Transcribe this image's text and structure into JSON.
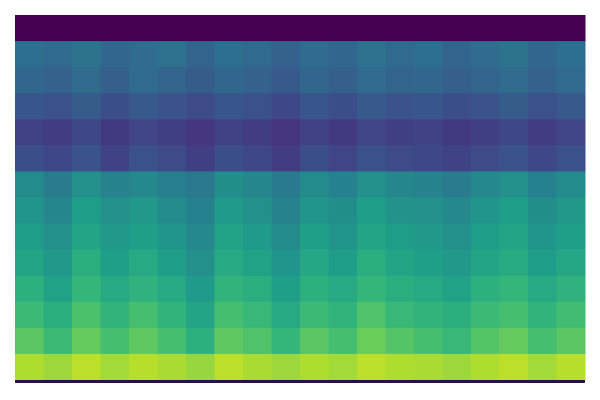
{
  "chart_data": {
    "type": "heatmap",
    "colormap": [
      "#440154",
      "#482878",
      "#3e4989",
      "#31688e",
      "#26828e",
      "#1f9e89",
      "#35b779",
      "#6ece58",
      "#b5de2b",
      "#fde725"
    ],
    "values": [
      [
        0,
        0,
        0,
        0,
        0,
        0,
        0,
        0,
        0,
        0,
        0,
        0,
        0,
        0,
        0,
        0,
        0,
        0,
        0,
        0
      ],
      [
        0.36,
        0.34,
        0.38,
        0.33,
        0.35,
        0.37,
        0.32,
        0.36,
        0.34,
        0.31,
        0.35,
        0.33,
        0.37,
        0.34,
        0.36,
        0.32,
        0.35,
        0.38,
        0.33,
        0.36
      ],
      [
        0.33,
        0.31,
        0.35,
        0.3,
        0.34,
        0.32,
        0.29,
        0.33,
        0.31,
        0.28,
        0.33,
        0.3,
        0.34,
        0.32,
        0.33,
        0.3,
        0.32,
        0.35,
        0.31,
        0.34
      ],
      [
        0.27,
        0.25,
        0.29,
        0.24,
        0.28,
        0.26,
        0.23,
        0.27,
        0.25,
        0.22,
        0.27,
        0.24,
        0.28,
        0.26,
        0.27,
        0.24,
        0.26,
        0.29,
        0.25,
        0.28
      ],
      [
        0.2,
        0.18,
        0.22,
        0.17,
        0.21,
        0.19,
        0.16,
        0.2,
        0.18,
        0.15,
        0.2,
        0.17,
        0.21,
        0.19,
        0.2,
        0.17,
        0.19,
        0.22,
        0.18,
        0.21
      ],
      [
        0.24,
        0.22,
        0.26,
        0.2,
        0.25,
        0.23,
        0.19,
        0.24,
        0.22,
        0.18,
        0.24,
        0.21,
        0.25,
        0.23,
        0.22,
        0.2,
        0.23,
        0.26,
        0.22,
        0.25
      ],
      [
        0.48,
        0.42,
        0.5,
        0.45,
        0.47,
        0.43,
        0.4,
        0.49,
        0.46,
        0.41,
        0.48,
        0.44,
        0.5,
        0.46,
        0.45,
        0.42,
        0.47,
        0.5,
        0.44,
        0.48
      ],
      [
        0.52,
        0.46,
        0.55,
        0.5,
        0.53,
        0.48,
        0.44,
        0.54,
        0.5,
        0.45,
        0.52,
        0.49,
        0.55,
        0.51,
        0.5,
        0.47,
        0.52,
        0.55,
        0.49,
        0.53
      ],
      [
        0.55,
        0.5,
        0.58,
        0.53,
        0.56,
        0.52,
        0.47,
        0.57,
        0.54,
        0.48,
        0.56,
        0.52,
        0.58,
        0.55,
        0.53,
        0.5,
        0.55,
        0.58,
        0.52,
        0.56
      ],
      [
        0.58,
        0.53,
        0.62,
        0.56,
        0.6,
        0.55,
        0.5,
        0.6,
        0.57,
        0.52,
        0.59,
        0.55,
        0.62,
        0.58,
        0.56,
        0.53,
        0.58,
        0.61,
        0.55,
        0.59
      ],
      [
        0.63,
        0.57,
        0.66,
        0.6,
        0.64,
        0.6,
        0.54,
        0.65,
        0.62,
        0.56,
        0.63,
        0.6,
        0.66,
        0.62,
        0.6,
        0.57,
        0.63,
        0.66,
        0.6,
        0.64
      ],
      [
        0.68,
        0.62,
        0.71,
        0.65,
        0.7,
        0.65,
        0.58,
        0.7,
        0.67,
        0.6,
        0.68,
        0.65,
        0.72,
        0.67,
        0.65,
        0.62,
        0.68,
        0.7,
        0.65,
        0.69
      ],
      [
        0.74,
        0.68,
        0.76,
        0.7,
        0.75,
        0.7,
        0.63,
        0.75,
        0.72,
        0.66,
        0.74,
        0.7,
        0.77,
        0.73,
        0.7,
        0.67,
        0.73,
        0.76,
        0.7,
        0.74
      ],
      [
        0.88,
        0.85,
        0.9,
        0.86,
        0.89,
        0.87,
        0.84,
        0.9,
        0.87,
        0.85,
        0.88,
        0.86,
        0.9,
        0.88,
        0.87,
        0.85,
        0.88,
        0.9,
        0.86,
        0.89
      ]
    ]
  }
}
